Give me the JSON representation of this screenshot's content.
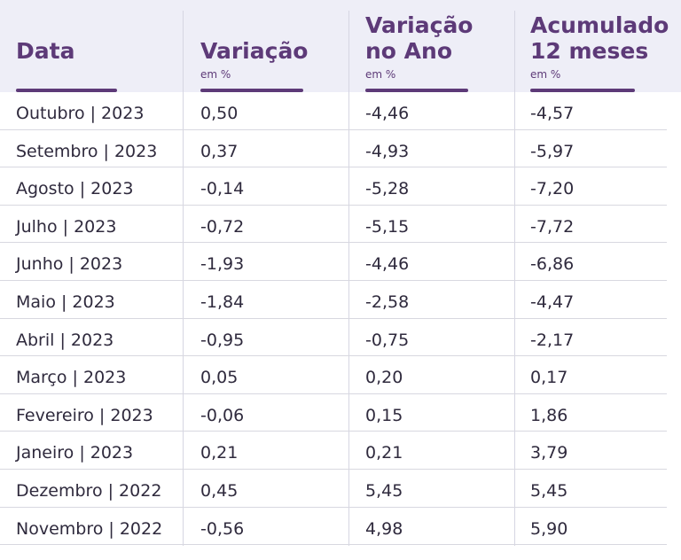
{
  "chart_data": {
    "type": "table",
    "columns": [
      {
        "title": "Data",
        "unit": ""
      },
      {
        "title": "Variação",
        "unit": "em %"
      },
      {
        "title": "Variação no Ano",
        "unit": "em %"
      },
      {
        "title": "Acumulado 12 meses",
        "unit": "em %"
      }
    ],
    "rows": [
      {
        "month": "Outubro | 2023",
        "variacao": "0,50",
        "ano": "-4,46",
        "acum": "-4,57"
      },
      {
        "month": "Setembro | 2023",
        "variacao": "0,37",
        "ano": "-4,93",
        "acum": "-5,97"
      },
      {
        "month": "Agosto | 2023",
        "variacao": "-0,14",
        "ano": "-5,28",
        "acum": "-7,20"
      },
      {
        "month": "Julho | 2023",
        "variacao": "-0,72",
        "ano": "-5,15",
        "acum": "-7,72"
      },
      {
        "month": "Junho | 2023",
        "variacao": "-1,93",
        "ano": "-4,46",
        "acum": "-6,86"
      },
      {
        "month": "Maio | 2023",
        "variacao": "-1,84",
        "ano": "-2,58",
        "acum": "-4,47"
      },
      {
        "month": "Abril | 2023",
        "variacao": "-0,95",
        "ano": "-0,75",
        "acum": "-2,17"
      },
      {
        "month": "Março | 2023",
        "variacao": "0,05",
        "ano": "0,20",
        "acum": "0,17"
      },
      {
        "month": "Fevereiro | 2023",
        "variacao": "-0,06",
        "ano": "0,15",
        "acum": "1,86"
      },
      {
        "month": "Janeiro | 2023",
        "variacao": "0,21",
        "ano": "0,21",
        "acum": "3,79"
      },
      {
        "month": "Dezembro | 2022",
        "variacao": "0,45",
        "ano": "5,45",
        "acum": "5,45"
      },
      {
        "month": "Novembro | 2022",
        "variacao": "-0,56",
        "ano": "4,98",
        "acum": "5,90"
      }
    ]
  },
  "colors": {
    "header_bg": "#eeeef7",
    "accent": "#5d3a78",
    "text": "#2f2a3d"
  }
}
